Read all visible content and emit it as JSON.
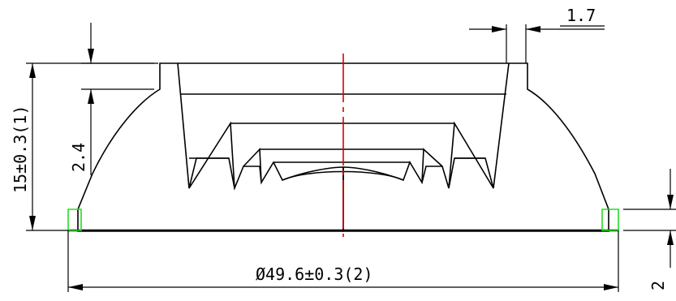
{
  "dimensions": {
    "top_wall_thickness": "1.7",
    "step_height": "2.4",
    "total_height": "15±0.3(1)",
    "diameter": "Ø49.6±0.3(2)",
    "flange_height": "2"
  },
  "colors": {
    "hatch": "#1a1ad6",
    "centerline": "#e00000",
    "flange_highlight": "#22dd22",
    "outline": "#000000"
  }
}
